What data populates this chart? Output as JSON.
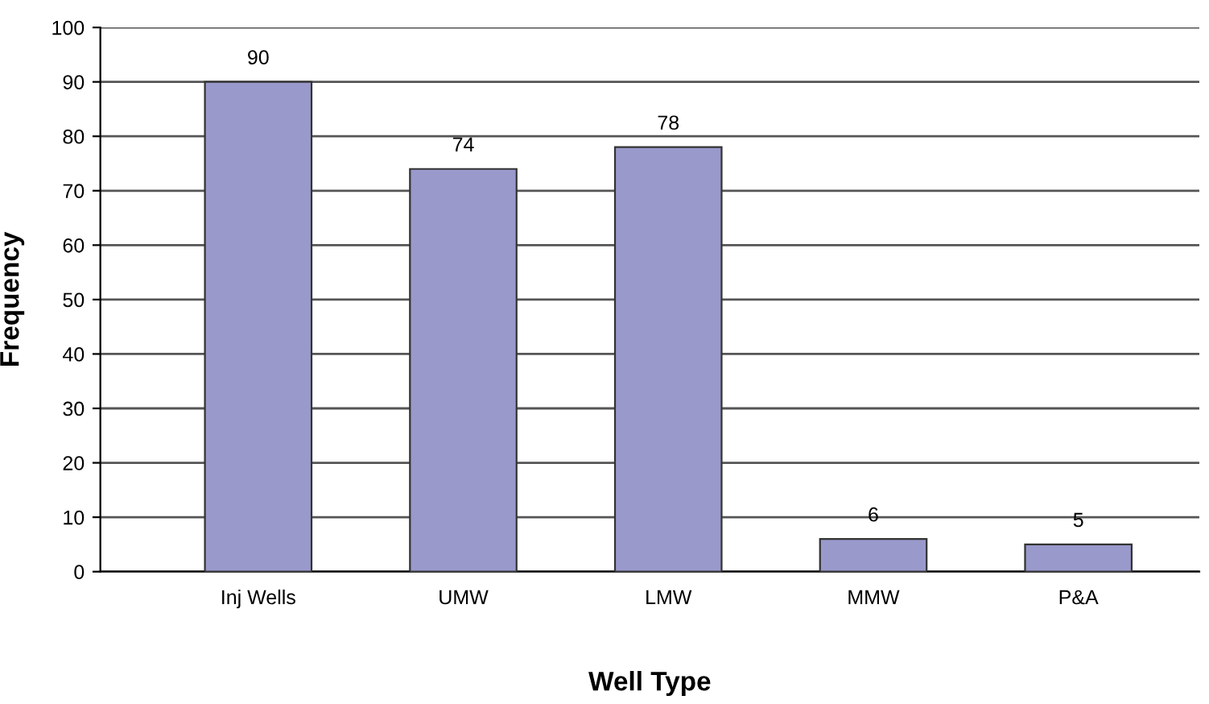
{
  "chart_data": {
    "type": "bar",
    "xlabel": "Well Type",
    "ylabel": "Frequency",
    "categories": [
      "Inj Wells",
      "UMW",
      "LMW",
      "MMW",
      "P&A"
    ],
    "values": [
      90,
      74,
      78,
      6,
      5
    ],
    "color": "#9999cc",
    "ylim": [
      0,
      100
    ],
    "yticks": [
      0,
      10,
      20,
      30,
      40,
      50,
      60,
      70,
      80,
      90,
      100
    ],
    "grid": "y",
    "data_labels": true
  }
}
